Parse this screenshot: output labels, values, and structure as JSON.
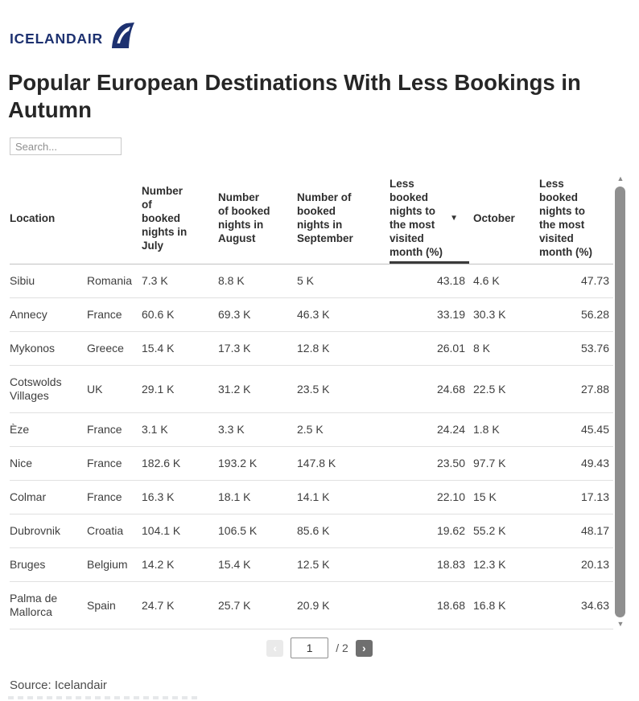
{
  "brand": {
    "logo_text": "ICELANDAIR"
  },
  "title_display": "Popular European Destinations With Less Bookings in\nAutumn",
  "search": {
    "placeholder": "Search..."
  },
  "header_display": [
    "Location",
    "",
    "Number\nof\nbooked\nnights in\nJuly",
    "Number\nof booked\nnights in\nAugust",
    "Number of\nbooked\nnights in\nSeptember",
    "Less\nbooked\nnights to\nthe most\nvisited\nmonth (%)",
    "October",
    "Less\nbooked\nnights to\nthe most\nvisited\nmonth (%)"
  ],
  "chart_data": {
    "type": "table",
    "title": "Popular European Destinations With Less Bookings in Autumn",
    "columns": [
      "Location",
      "",
      "Number of booked nights in July",
      "Number of booked nights in August",
      "Number of booked nights in September",
      "Less booked nights to the most visited month (%)",
      "October",
      "Less booked nights to the most visited month (%)"
    ],
    "sorted_column": "Less booked nights to the most visited month (%)",
    "sort_order": "descending",
    "rows": [
      [
        "Sibiu",
        "Romania",
        "7.3 K",
        "8.8 K",
        "5 K",
        "43.18",
        "4.6 K",
        "47.73"
      ],
      [
        "Annecy",
        "France",
        "60.6 K",
        "69.3 K",
        "46.3 K",
        "33.19",
        "30.3 K",
        "56.28"
      ],
      [
        "Mykonos",
        "Greece",
        "15.4 K",
        "17.3 K",
        "12.8 K",
        "26.01",
        "8 K",
        "53.76"
      ],
      [
        "Cotswolds Villages",
        "UK",
        "29.1 K",
        "31.2 K",
        "23.5 K",
        "24.68",
        "22.5 K",
        "27.88"
      ],
      [
        "Èze",
        "France",
        "3.1 K",
        "3.3 K",
        "2.5 K",
        "24.24",
        "1.8 K",
        "45.45"
      ],
      [
        "Nice",
        "France",
        "182.6 K",
        "193.2 K",
        "147.8 K",
        "23.50",
        "97.7 K",
        "49.43"
      ],
      [
        "Colmar",
        "France",
        "16.3 K",
        "18.1 K",
        "14.1 K",
        "22.10",
        "15 K",
        "17.13"
      ],
      [
        "Dubrovnik",
        "Croatia",
        "104.1 K",
        "106.5 K",
        "85.6 K",
        "19.62",
        "55.2 K",
        "48.17"
      ],
      [
        "Bruges",
        "Belgium",
        "14.2 K",
        "15.4 K",
        "12.5 K",
        "18.83",
        "12.3 K",
        "20.13"
      ],
      [
        "Palma de Mallorca",
        "Spain",
        "24.7 K",
        "25.7 K",
        "20.9 K",
        "18.68",
        "16.8 K",
        "34.63"
      ]
    ]
  },
  "icons": {
    "sort_desc": "▼",
    "prev": "‹",
    "next": "›",
    "scroll_up": "▲",
    "scroll_down": "▼"
  },
  "pagination": {
    "page": "1",
    "of_label": "/ 2"
  },
  "source": "Source: Icelandair",
  "colors": {
    "brand_navy": "#1d3170",
    "sort_underline": "#3a3a3a",
    "row_divider": "#e0e0e0",
    "header_divider": "#c2c2c2",
    "next_button_bg": "#6f6f6f",
    "prev_button_bg": "#eaeaea",
    "scroll_thumb": "#8f8f8f"
  }
}
